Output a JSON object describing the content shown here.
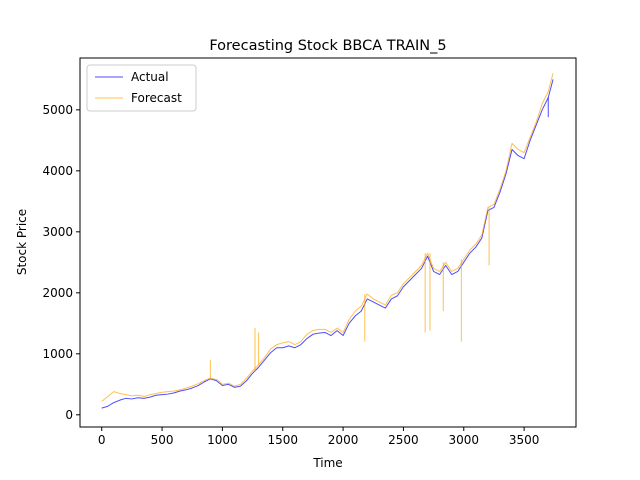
{
  "chart_data": {
    "type": "line",
    "title": "Forecasting Stock BBCA TRAIN_5",
    "xlabel": "Time",
    "ylabel": "Stock Price",
    "xlim": [
      -180,
      3930
    ],
    "ylim": [
      -200,
      5850
    ],
    "xticks": [
      0,
      500,
      1000,
      1500,
      2000,
      2500,
      3000,
      3500
    ],
    "yticks": [
      0,
      1000,
      2000,
      3000,
      4000,
      5000
    ],
    "grid": false,
    "legend_position": "top-left",
    "series": [
      {
        "name": "Actual",
        "color": "#0000ff",
        "opacity": 0.7,
        "x": [
          0,
          50,
          100,
          150,
          200,
          250,
          300,
          350,
          400,
          450,
          500,
          550,
          600,
          650,
          700,
          750,
          800,
          850,
          900,
          950,
          1000,
          1050,
          1100,
          1150,
          1200,
          1250,
          1300,
          1350,
          1400,
          1450,
          1500,
          1550,
          1600,
          1650,
          1700,
          1750,
          1800,
          1850,
          1900,
          1950,
          2000,
          2050,
          2100,
          2150,
          2200,
          2250,
          2300,
          2350,
          2400,
          2450,
          2500,
          2550,
          2600,
          2650,
          2700,
          2750,
          2800,
          2850,
          2900,
          2950,
          3000,
          3050,
          3100,
          3150,
          3200,
          3250,
          3300,
          3350,
          3400,
          3450,
          3500,
          3550,
          3600,
          3650,
          3700,
          3740
        ],
        "y": [
          110,
          140,
          200,
          240,
          270,
          260,
          280,
          270,
          290,
          320,
          330,
          340,
          360,
          390,
          410,
          440,
          480,
          540,
          590,
          560,
          480,
          500,
          450,
          470,
          560,
          680,
          780,
          900,
          1020,
          1100,
          1100,
          1130,
          1100,
          1150,
          1250,
          1320,
          1340,
          1350,
          1300,
          1380,
          1300,
          1500,
          1620,
          1700,
          1900,
          1850,
          1800,
          1750,
          1900,
          1950,
          2100,
          2200,
          2300,
          2400,
          2600,
          2350,
          2300,
          2450,
          2300,
          2350,
          2500,
          2650,
          2750,
          2900,
          3350,
          3400,
          3650,
          3950,
          4350,
          4250,
          4200,
          4500,
          4750,
          5000,
          5200,
          5500
        ]
      },
      {
        "name": "Forecast",
        "color": "#ffa500",
        "opacity": 0.7,
        "x": [
          0,
          50,
          100,
          150,
          200,
          250,
          300,
          350,
          400,
          450,
          500,
          550,
          600,
          650,
          700,
          750,
          800,
          850,
          900,
          950,
          1000,
          1050,
          1100,
          1150,
          1200,
          1250,
          1300,
          1350,
          1400,
          1450,
          1500,
          1550,
          1600,
          1650,
          1700,
          1750,
          1800,
          1850,
          1900,
          1950,
          2000,
          2050,
          2100,
          2150,
          2200,
          2250,
          2300,
          2350,
          2400,
          2450,
          2500,
          2550,
          2600,
          2650,
          2700,
          2750,
          2800,
          2850,
          2900,
          2950,
          3000,
          3050,
          3100,
          3150,
          3200,
          3250,
          3300,
          3350,
          3400,
          3450,
          3500,
          3550,
          3600,
          3650,
          3700,
          3740
        ],
        "y": [
          220,
          300,
          380,
          350,
          330,
          310,
          320,
          300,
          330,
          350,
          370,
          380,
          390,
          410,
          440,
          470,
          510,
          560,
          600,
          580,
          500,
          520,
          470,
          500,
          600,
          720,
          820,
          940,
          1080,
          1150,
          1180,
          1200,
          1150,
          1200,
          1320,
          1380,
          1400,
          1400,
          1350,
          1420,
          1350,
          1560,
          1700,
          1780,
          1980,
          1900,
          1850,
          1800,
          1960,
          2000,
          2150,
          2250,
          2350,
          2450,
          2650,
          2400,
          2350,
          2500,
          2350,
          2400,
          2550,
          2700,
          2800,
          2950,
          3400,
          3450,
          3700,
          4000,
          4450,
          4350,
          4300,
          4550,
          4800,
          5100,
          5300,
          5600
        ]
      }
    ],
    "spikes": [
      {
        "series": "Forecast",
        "x": 900,
        "y": 900
      },
      {
        "series": "Forecast",
        "x": 1270,
        "y": 1420
      },
      {
        "series": "Forecast",
        "x": 1300,
        "y": 1350
      },
      {
        "series": "Forecast",
        "x": 2180,
        "y": 1200
      },
      {
        "series": "Forecast",
        "x": 2680,
        "y": 1350
      },
      {
        "series": "Forecast",
        "x": 2720,
        "y": 1380
      },
      {
        "series": "Forecast",
        "x": 2830,
        "y": 1700
      },
      {
        "series": "Forecast",
        "x": 2980,
        "y": 1200
      },
      {
        "series": "Forecast",
        "x": 3210,
        "y": 2450
      },
      {
        "series": "Actual",
        "x": 3700,
        "y": 4880
      }
    ]
  }
}
